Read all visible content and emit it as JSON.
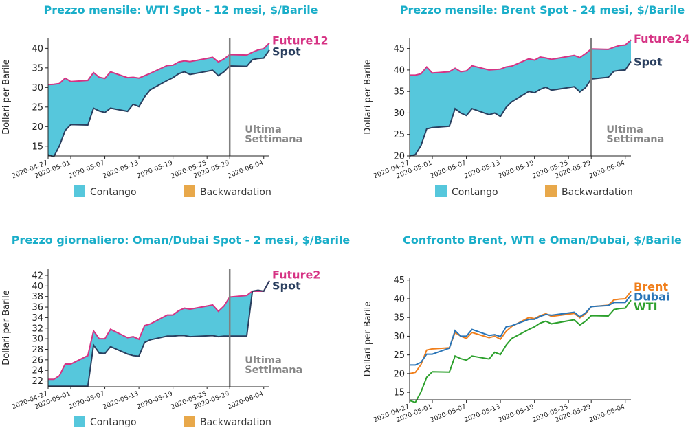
{
  "colors": {
    "title": "#1aaec9",
    "contango": "#56c7dc",
    "backwardation": "#e8a84a",
    "future_line": "#d63384",
    "spot_line": "#2a3f5f",
    "vline": "#808080",
    "brent": "#f07f1c",
    "dubai": "#2a75b7",
    "wti": "#2ca02c"
  },
  "chart_data": [
    {
      "type": "area",
      "title": "Prezzo mensile: WTI Spot - 12 mesi, $/Barile",
      "ylabel": "Dollari per Barile",
      "ylim": [
        12.5,
        42.7
      ],
      "yticks": [
        15,
        20,
        25,
        30,
        35,
        40
      ],
      "xlim": [
        "2020-04-27",
        "2020-06-05"
      ],
      "xticks": [
        "2020-04-27",
        "2020-05-01",
        "2020-05-07",
        "2020-05-13",
        "2020-05-19",
        "2020-05-25",
        "2020-05-29",
        "2020-06-04"
      ],
      "vline": "2020-05-29",
      "annotation": [
        "Ultima",
        "Settimana"
      ],
      "future_label": "Future12",
      "spot_label": "Spot",
      "legend": [
        "Contango",
        "Backwardation"
      ],
      "x": [
        "2020-04-27",
        "2020-04-28",
        "2020-04-29",
        "2020-04-30",
        "2020-05-01",
        "2020-05-04",
        "2020-05-05",
        "2020-05-06",
        "2020-05-07",
        "2020-05-08",
        "2020-05-11",
        "2020-05-12",
        "2020-05-13",
        "2020-05-14",
        "2020-05-15",
        "2020-05-18",
        "2020-05-19",
        "2020-05-20",
        "2020-05-21",
        "2020-05-22",
        "2020-05-26",
        "2020-05-27",
        "2020-05-28",
        "2020-05-29",
        "2020-06-01",
        "2020-06-02",
        "2020-06-03",
        "2020-06-04",
        "2020-06-05"
      ],
      "future": [
        30.7,
        30.8,
        31.0,
        32.4,
        31.5,
        31.8,
        33.8,
        32.6,
        32.3,
        34.0,
        32.5,
        32.6,
        32.4,
        33.0,
        33.6,
        35.6,
        35.7,
        36.5,
        36.8,
        36.6,
        37.7,
        36.5,
        37.3,
        38.4,
        38.3,
        39.0,
        39.6,
        39.9,
        41.4
      ],
      "spot": [
        12.8,
        12.3,
        15.1,
        19.0,
        20.5,
        20.4,
        24.7,
        24.0,
        23.6,
        24.7,
        23.9,
        25.7,
        25.1,
        27.6,
        29.4,
        31.8,
        32.5,
        33.5,
        34.0,
        33.3,
        34.4,
        33.0,
        34.0,
        35.5,
        35.4,
        37.1,
        37.4,
        37.5,
        39.6
      ]
    },
    {
      "type": "area",
      "title": "Prezzo mensile: Brent Spot - 24 mesi, $/Barile",
      "ylabel": "Dollari per Barile",
      "ylim": [
        20,
        47.5
      ],
      "yticks": [
        20,
        25,
        30,
        35,
        40,
        45
      ],
      "xlim": [
        "2020-04-27",
        "2020-06-05"
      ],
      "xticks": [
        "2020-04-27",
        "2020-05-01",
        "2020-05-07",
        "2020-05-13",
        "2020-05-19",
        "2020-05-25",
        "2020-05-29",
        "2020-06-04"
      ],
      "vline": "2020-05-29",
      "annotation": [
        "Ultima",
        "Settimana"
      ],
      "future_label": "Future24",
      "spot_label": "Spot",
      "legend": [
        "Contango",
        "Backwardation"
      ],
      "x": [
        "2020-04-27",
        "2020-04-28",
        "2020-04-29",
        "2020-04-30",
        "2020-05-01",
        "2020-05-04",
        "2020-05-05",
        "2020-05-06",
        "2020-05-07",
        "2020-05-08",
        "2020-05-11",
        "2020-05-12",
        "2020-05-13",
        "2020-05-14",
        "2020-05-15",
        "2020-05-18",
        "2020-05-19",
        "2020-05-20",
        "2020-05-21",
        "2020-05-22",
        "2020-05-26",
        "2020-05-27",
        "2020-05-28",
        "2020-05-29",
        "2020-06-01",
        "2020-06-02",
        "2020-06-03",
        "2020-06-04",
        "2020-06-05"
      ],
      "future": [
        38.8,
        38.8,
        39.1,
        40.7,
        39.3,
        39.6,
        40.4,
        39.6,
        39.8,
        41.0,
        40.0,
        40.1,
        40.2,
        40.7,
        40.9,
        42.6,
        42.3,
        43.0,
        42.8,
        42.5,
        43.4,
        42.9,
        43.8,
        44.9,
        44.8,
        45.3,
        45.7,
        45.8,
        47.0
      ],
      "spot": [
        20.0,
        20.3,
        22.4,
        26.3,
        26.6,
        26.9,
        31.0,
        30.0,
        29.4,
        31.0,
        29.6,
        30.0,
        29.2,
        31.3,
        32.6,
        35.0,
        34.7,
        35.5,
        36.0,
        35.3,
        36.1,
        34.9,
        35.9,
        37.9,
        38.3,
        39.7,
        39.9,
        40.0,
        42.0
      ]
    },
    {
      "type": "area",
      "title": "Prezzo giornaliero: Oman/Dubai Spot - 2 mesi, $/Barile",
      "ylabel": "Dollari per Barile",
      "ylim": [
        20.9,
        43.3
      ],
      "yticks": [
        22,
        24,
        26,
        28,
        30,
        32,
        34,
        36,
        38,
        40,
        42
      ],
      "xlim": [
        "2020-04-27",
        "2020-06-05"
      ],
      "xticks": [
        "2020-04-27",
        "2020-05-01",
        "2020-05-07",
        "2020-05-13",
        "2020-05-19",
        "2020-05-25",
        "2020-05-29",
        "2020-06-04"
      ],
      "vline": "2020-05-29",
      "annotation": [
        "Ultima",
        "Settimana"
      ],
      "future_label": "Future2",
      "spot_label": "Spot",
      "legend": [
        "Contango",
        "Backwardation"
      ],
      "x": [
        "2020-04-27",
        "2020-04-28",
        "2020-04-29",
        "2020-04-30",
        "2020-05-01",
        "2020-05-04",
        "2020-05-05",
        "2020-05-06",
        "2020-05-07",
        "2020-05-08",
        "2020-05-11",
        "2020-05-12",
        "2020-05-13",
        "2020-05-14",
        "2020-05-15",
        "2020-05-18",
        "2020-05-19",
        "2020-05-20",
        "2020-05-21",
        "2020-05-22",
        "2020-05-26",
        "2020-05-27",
        "2020-05-28",
        "2020-05-29",
        "2020-06-01",
        "2020-06-02",
        "2020-06-03",
        "2020-06-04",
        "2020-06-05"
      ],
      "future": [
        22.3,
        22.3,
        23.0,
        25.2,
        25.2,
        26.8,
        31.5,
        30.0,
        30.0,
        31.8,
        30.2,
        30.4,
        29.9,
        32.5,
        32.8,
        34.5,
        34.5,
        35.3,
        35.8,
        35.6,
        36.4,
        35.2,
        36.2,
        37.9,
        38.2,
        39.0,
        39.0,
        39.0,
        41.0
      ],
      "spot": [
        21.0,
        21.0,
        21.0,
        21.0,
        21.0,
        21.0,
        28.8,
        27.3,
        27.2,
        28.5,
        27.1,
        26.8,
        26.7,
        29.3,
        29.8,
        30.5,
        30.5,
        30.6,
        30.6,
        30.4,
        30.6,
        30.4,
        30.5,
        30.5,
        30.5,
        39.0,
        39.2,
        39.0,
        41.0
      ]
    },
    {
      "type": "line",
      "title": "Confronto Brent, WTI e Oman/Dubai, $/Barile",
      "ylabel": "Dollari per Barile",
      "ylim": [
        13,
        45.5
      ],
      "yticks": [
        15,
        20,
        25,
        30,
        35,
        40,
        45
      ],
      "xlim": [
        "2020-04-27",
        "2020-06-05"
      ],
      "xticks": [
        "2020-04-27",
        "2020-05-01",
        "2020-05-07",
        "2020-05-13",
        "2020-05-19",
        "2020-05-25",
        "2020-05-29",
        "2020-06-04"
      ],
      "x": [
        "2020-04-27",
        "2020-04-28",
        "2020-04-29",
        "2020-04-30",
        "2020-05-01",
        "2020-05-04",
        "2020-05-05",
        "2020-05-06",
        "2020-05-07",
        "2020-05-08",
        "2020-05-11",
        "2020-05-12",
        "2020-05-13",
        "2020-05-14",
        "2020-05-15",
        "2020-05-18",
        "2020-05-19",
        "2020-05-20",
        "2020-05-21",
        "2020-05-22",
        "2020-05-26",
        "2020-05-27",
        "2020-05-28",
        "2020-05-29",
        "2020-06-01",
        "2020-06-02",
        "2020-06-03",
        "2020-06-04",
        "2020-06-05"
      ],
      "series": [
        {
          "name": "Brent",
          "color": "#f07f1c",
          "values": [
            20.0,
            20.3,
            22.4,
            26.3,
            26.6,
            26.9,
            31.0,
            30.0,
            29.4,
            31.0,
            29.6,
            30.0,
            29.2,
            31.3,
            32.6,
            35.0,
            34.7,
            35.5,
            36.0,
            35.3,
            36.1,
            34.9,
            35.9,
            37.9,
            38.3,
            39.7,
            39.9,
            40.0,
            42.0
          ]
        },
        {
          "name": "Dubai",
          "color": "#2a75b7",
          "values": [
            22.3,
            22.3,
            23.0,
            25.2,
            25.2,
            26.8,
            31.5,
            30.0,
            30.0,
            31.8,
            30.2,
            30.4,
            29.9,
            32.5,
            32.8,
            34.5,
            34.5,
            35.3,
            35.8,
            35.6,
            36.4,
            35.2,
            36.2,
            37.9,
            38.2,
            39.0,
            39.0,
            39.0,
            41.0
          ]
        },
        {
          "name": "WTI",
          "color": "#2ca02c",
          "values": [
            12.8,
            12.3,
            15.1,
            19.0,
            20.5,
            20.4,
            24.7,
            24.0,
            23.6,
            24.7,
            23.9,
            25.7,
            25.1,
            27.6,
            29.4,
            31.8,
            32.5,
            33.5,
            34.0,
            33.3,
            34.4,
            33.0,
            34.0,
            35.5,
            35.4,
            37.1,
            37.4,
            37.5,
            39.6
          ]
        }
      ]
    }
  ]
}
